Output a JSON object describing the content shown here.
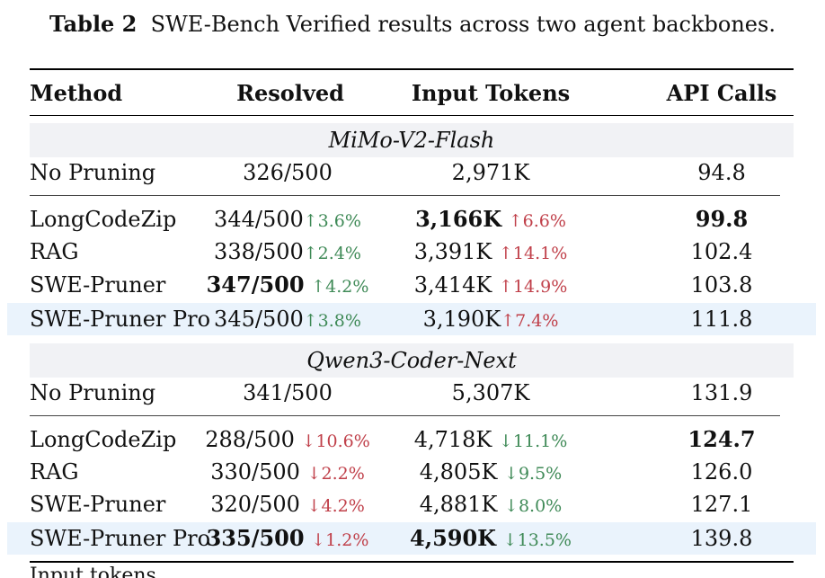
{
  "caption": {
    "label": "Table 2",
    "text": "SWE-Bench Verified results across two agent backbones."
  },
  "headers": {
    "method": "Method",
    "resolved": "Resolved",
    "tokens": "Input Tokens",
    "api": "API Calls"
  },
  "groups": [
    {
      "name": "MiMo-V2-Flash",
      "rows": [
        {
          "method": "No Pruning",
          "resolved": "326/500",
          "resolved_delta": "",
          "tokens": "2,971K",
          "tokens_delta": "",
          "api": "94.8"
        },
        {
          "method": "LongCodeZip",
          "resolved": "344/500",
          "resolved_delta": "↑3.6%",
          "tokens": "3,166K",
          "tokens_delta": "↑6.6%",
          "api": "99.8"
        },
        {
          "method": "RAG",
          "resolved": "338/500",
          "resolved_delta": "↑2.4%",
          "tokens": "3,391K",
          "tokens_delta": "↑14.1%",
          "api": "102.4"
        },
        {
          "method": "SWE-Pruner",
          "resolved": "347/500",
          "resolved_delta": "↑4.2%",
          "tokens": "3,414K",
          "tokens_delta": "↑14.9%",
          "api": "103.8"
        },
        {
          "method": "SWE-Pruner Pro",
          "resolved": "345/500",
          "resolved_delta": "↑3.8%",
          "tokens": "3,190K",
          "tokens_delta": "↑7.4%",
          "api": "111.8"
        }
      ]
    },
    {
      "name": "Qwen3-Coder-Next",
      "rows": [
        {
          "method": "No Pruning",
          "resolved": "341/500",
          "resolved_delta": "",
          "tokens": "5,307K",
          "tokens_delta": "",
          "api": "131.9"
        },
        {
          "method": "LongCodeZip",
          "resolved": "288/500",
          "resolved_delta": "↓10.6%",
          "tokens": "4,718K",
          "tokens_delta": "↓11.1%",
          "api": "124.7"
        },
        {
          "method": "RAG",
          "resolved": "330/500",
          "resolved_delta": "↓2.2%",
          "tokens": "4,805K",
          "tokens_delta": "↓9.5%",
          "api": "126.0"
        },
        {
          "method": "SWE-Pruner",
          "resolved": "320/500",
          "resolved_delta": "↓4.2%",
          "tokens": "4,881K",
          "tokens_delta": "↓8.0%",
          "api": "127.1"
        },
        {
          "method": "SWE-Pruner Pro",
          "resolved": "335/500",
          "resolved_delta": "↓1.2%",
          "tokens": "4,590K",
          "tokens_delta": "↓13.5%",
          "api": "139.8"
        }
      ]
    }
  ],
  "colors": {
    "good": "#3f8a57",
    "bad": "#c0404a",
    "group_band": "#f1f2f5",
    "highlight_band": "#eaf3fc"
  },
  "cut_off_text": "Input tokens ... ... ... ..."
}
